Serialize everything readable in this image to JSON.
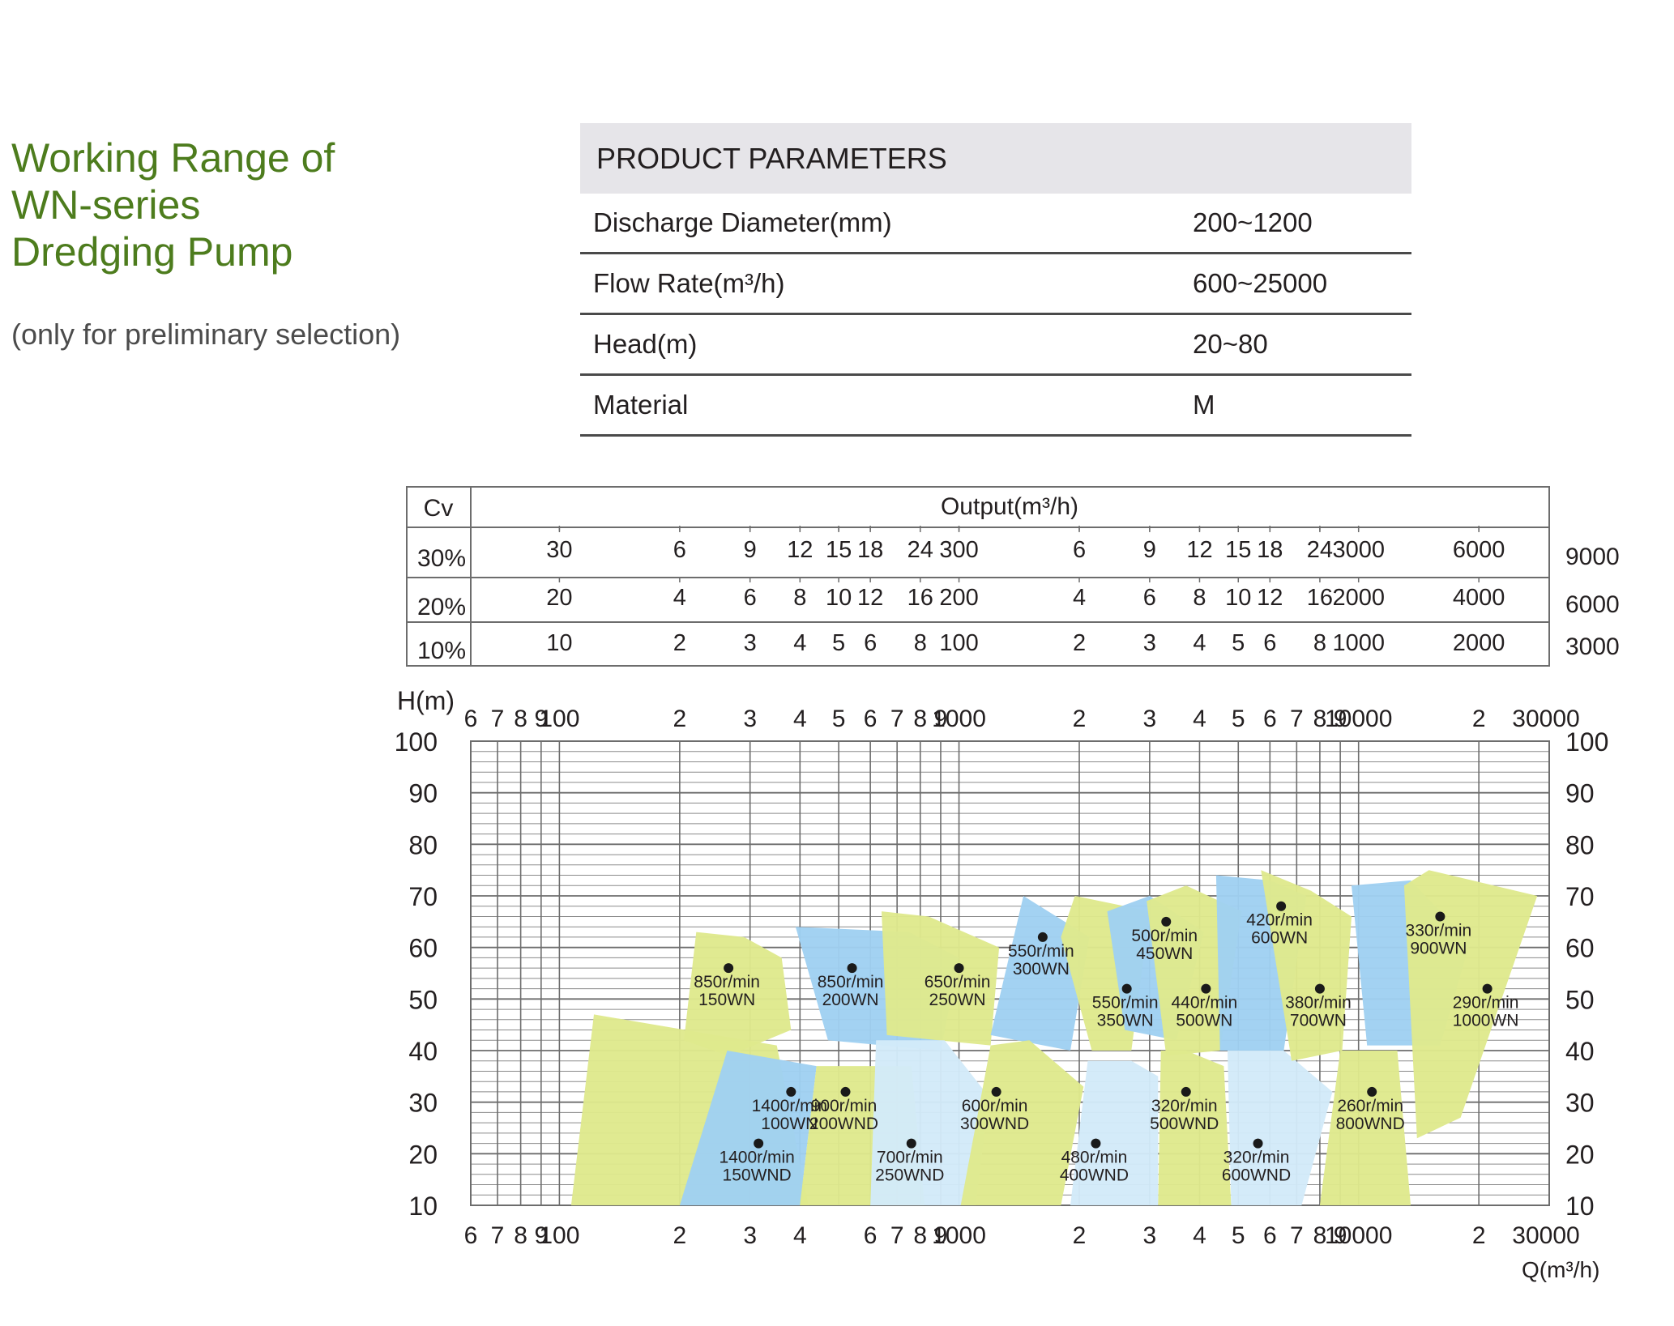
{
  "title_lines": [
    "Working Range of",
    "WN-series",
    "Dredging Pump"
  ],
  "subtitle": "(only for preliminary selection)",
  "params": {
    "header": "PRODUCT PARAMETERS",
    "rows": [
      {
        "label": "Discharge Diameter(mm)",
        "value": "200~1200"
      },
      {
        "label": "Flow Rate(m³/h)",
        "value": "600~25000"
      },
      {
        "label": "Head(m)",
        "value": "20~80"
      },
      {
        "label": "Material",
        "value": "M"
      }
    ]
  },
  "colors": {
    "title_green": "#4d7c1d",
    "yellow": "#dfe98d",
    "pale_yellow": "#eef3bf",
    "blue": "#9fd0f1",
    "pale_blue": "#d2eaf9",
    "grid": "#6d6d6d"
  },
  "chart_data": {
    "type": "area",
    "xscale": "log",
    "xlim": [
      60,
      30000
    ],
    "ylim": [
      10,
      100
    ],
    "xlabel": "Q(m³/h)",
    "ylabel": "H(m)",
    "y_ticks": [
      100,
      90,
      80,
      70,
      60,
      50,
      40,
      30,
      20,
      10
    ],
    "x_ticks": [
      {
        "v": 60,
        "t": "6"
      },
      {
        "v": 70,
        "t": "7"
      },
      {
        "v": 80,
        "t": "8"
      },
      {
        "v": 90,
        "t": "9"
      },
      {
        "v": 100,
        "t": "100"
      },
      {
        "v": 200,
        "t": "2"
      },
      {
        "v": 300,
        "t": "3"
      },
      {
        "v": 400,
        "t": "4"
      },
      {
        "v": 500,
        "t": "5"
      },
      {
        "v": 600,
        "t": "6"
      },
      {
        "v": 700,
        "t": "7"
      },
      {
        "v": 800,
        "t": "8"
      },
      {
        "v": 900,
        "t": "9"
      },
      {
        "v": 1000,
        "t": "1000"
      },
      {
        "v": 2000,
        "t": "2"
      },
      {
        "v": 3000,
        "t": "3"
      },
      {
        "v": 4000,
        "t": "4"
      },
      {
        "v": 5000,
        "t": "5"
      },
      {
        "v": 6000,
        "t": "6"
      },
      {
        "v": 7000,
        "t": "7"
      },
      {
        "v": 8000,
        "t": "8"
      },
      {
        "v": 9000,
        "t": "9"
      },
      {
        "v": 10000,
        "t": "10000"
      },
      {
        "v": 20000,
        "t": "2"
      },
      {
        "v": 30000,
        "t": "30000"
      }
    ],
    "bottom_hidden_ticks": [
      500
    ],
    "cv_table": {
      "header_left": "Cv",
      "header_right": "Output(m³/h)",
      "rows": [
        {
          "cv": "30%",
          "right": "9000",
          "labels": [
            {
              "v": 100,
              "t": "30"
            },
            {
              "v": 200,
              "t": "6"
            },
            {
              "v": 300,
              "t": "9"
            },
            {
              "v": 400,
              "t": "12"
            },
            {
              "v": 500,
              "t": "15"
            },
            {
              "v": 600,
              "t": "18"
            },
            {
              "v": 800,
              "t": "24"
            },
            {
              "v": 1000,
              "t": "300"
            },
            {
              "v": 2000,
              "t": "6"
            },
            {
              "v": 3000,
              "t": "9"
            },
            {
              "v": 4000,
              "t": "12"
            },
            {
              "v": 5000,
              "t": "15"
            },
            {
              "v": 6000,
              "t": "18"
            },
            {
              "v": 8000,
              "t": "24"
            },
            {
              "v": 10000,
              "t": "3000"
            },
            {
              "v": 20000,
              "t": "6000"
            }
          ]
        },
        {
          "cv": "20%",
          "right": "6000",
          "labels": [
            {
              "v": 100,
              "t": "20"
            },
            {
              "v": 200,
              "t": "4"
            },
            {
              "v": 300,
              "t": "6"
            },
            {
              "v": 400,
              "t": "8"
            },
            {
              "v": 500,
              "t": "10"
            },
            {
              "v": 600,
              "t": "12"
            },
            {
              "v": 800,
              "t": "16"
            },
            {
              "v": 1000,
              "t": "200"
            },
            {
              "v": 2000,
              "t": "4"
            },
            {
              "v": 3000,
              "t": "6"
            },
            {
              "v": 4000,
              "t": "8"
            },
            {
              "v": 5000,
              "t": "10"
            },
            {
              "v": 6000,
              "t": "12"
            },
            {
              "v": 8000,
              "t": "16"
            },
            {
              "v": 10000,
              "t": "2000"
            },
            {
              "v": 20000,
              "t": "4000"
            }
          ]
        },
        {
          "cv": "10%",
          "right": "3000",
          "labels": [
            {
              "v": 100,
              "t": "10"
            },
            {
              "v": 200,
              "t": "2"
            },
            {
              "v": 300,
              "t": "3"
            },
            {
              "v": 400,
              "t": "4"
            },
            {
              "v": 500,
              "t": "5"
            },
            {
              "v": 600,
              "t": "6"
            },
            {
              "v": 800,
              "t": "8"
            },
            {
              "v": 1000,
              "t": "100"
            },
            {
              "v": 2000,
              "t": "2"
            },
            {
              "v": 3000,
              "t": "3"
            },
            {
              "v": 4000,
              "t": "4"
            },
            {
              "v": 5000,
              "t": "5"
            },
            {
              "v": 6000,
              "t": "6"
            },
            {
              "v": 8000,
              "t": "8"
            },
            {
              "v": 10000,
              "t": "1000"
            },
            {
              "v": 20000,
              "t": "2000"
            }
          ]
        }
      ]
    },
    "series": [
      {
        "name": "1400r/min 100WN",
        "l1": "1400r/min",
        "l2": "100WN",
        "color": "yellow",
        "point": [
          380,
          32
        ],
        "poly": [
          [
            107,
            10
          ],
          [
            420,
            10
          ],
          [
            350,
            41
          ],
          [
            122,
            47
          ]
        ]
      },
      {
        "name": "850r/min 150WN",
        "l1": "850r/min",
        "l2": "150WN",
        "color": "yellow",
        "point": [
          265,
          56
        ],
        "poly": [
          [
            205,
            42
          ],
          [
            265,
            39
          ],
          [
            380,
            44
          ],
          [
            360,
            58
          ],
          [
            290,
            62
          ],
          [
            220,
            63
          ]
        ]
      },
      {
        "name": "1400r/min 150WND",
        "l1": "1400r/min",
        "l2": "150WND",
        "color": "blue",
        "point": [
          315,
          22
        ],
        "poly": [
          [
            200,
            10
          ],
          [
            400,
            10
          ],
          [
            440,
            37
          ],
          [
            263,
            40
          ]
        ]
      },
      {
        "name": "850r/min 200WN",
        "l1": "850r/min",
        "l2": "200WN",
        "color": "blue",
        "point": [
          540,
          56
        ],
        "poly": [
          [
            470,
            42
          ],
          [
            900,
            40
          ],
          [
            1000,
            58
          ],
          [
            750,
            63
          ],
          [
            390,
            64
          ]
        ]
      },
      {
        "name": "900r/min 200WND",
        "l1": "900r/min",
        "l2": "200WND",
        "color": "yellow",
        "point": [
          520,
          32
        ],
        "poly": [
          [
            400,
            10
          ],
          [
            820,
            10
          ],
          [
            760,
            37
          ],
          [
            440,
            37
          ]
        ]
      },
      {
        "name": "650r/min 250WN",
        "l1": "650r/min",
        "l2": "250WN",
        "color": "yellow",
        "point": [
          1000,
          56
        ],
        "poly": [
          [
            660,
            43
          ],
          [
            1200,
            41
          ],
          [
            1260,
            60
          ],
          [
            840,
            66
          ],
          [
            640,
            67
          ]
        ]
      },
      {
        "name": "700r/min 250WND",
        "l1": "700r/min",
        "l2": "250WND",
        "color": "pale_blue",
        "point": [
          760,
          22
        ],
        "poly": [
          [
            600,
            10
          ],
          [
            1100,
            10
          ],
          [
            1190,
            31
          ],
          [
            920,
            42
          ],
          [
            620,
            42
          ]
        ]
      },
      {
        "name": "550r/min 300WN",
        "l1": "550r/min",
        "l2": "300WN",
        "color": "blue",
        "point": [
          1620,
          62
        ],
        "poly": [
          [
            1200,
            43
          ],
          [
            1900,
            40
          ],
          [
            2120,
            62
          ],
          [
            1450,
            70
          ]
        ]
      },
      {
        "name": "600r/min 300WND",
        "l1": "600r/min",
        "l2": "300WND",
        "color": "yellow",
        "point": [
          1240,
          32
        ],
        "poly": [
          [
            1010,
            10
          ],
          [
            1800,
            10
          ],
          [
            2050,
            33
          ],
          [
            1500,
            42
          ],
          [
            1200,
            41
          ]
        ]
      },
      {
        "name": "550r/min 350WN",
        "l1": "550r/min",
        "l2": "350WN",
        "color": "yellow",
        "point": [
          2630,
          52
        ],
        "poly": [
          [
            2150,
            40
          ],
          [
            2700,
            40
          ],
          [
            3000,
            67
          ],
          [
            1950,
            70
          ],
          [
            1800,
            62
          ]
        ]
      },
      {
        "name": "480r/min 400WND",
        "l1": "480r/min",
        "l2": "400WND",
        "color": "pale_blue",
        "point": [
          2200,
          22
        ],
        "poly": [
          [
            1900,
            10
          ],
          [
            3150,
            10
          ],
          [
            3150,
            35
          ],
          [
            2700,
            38
          ],
          [
            2100,
            38
          ]
        ]
      },
      {
        "name": "500r/min 450WN",
        "l1": "500r/min",
        "l2": "450WN",
        "color": "blue",
        "point": [
          3300,
          65
        ],
        "poly": [
          [
            2600,
            44
          ],
          [
            3500,
            42
          ],
          [
            4100,
            63
          ],
          [
            3000,
            70
          ],
          [
            2350,
            67
          ]
        ]
      },
      {
        "name": "440r/min 500WN",
        "l1": "440r/min",
        "l2": "500WN",
        "color": "yellow",
        "point": [
          4150,
          52
        ],
        "poly": [
          [
            3300,
            39
          ],
          [
            4500,
            40
          ],
          [
            5100,
            67
          ],
          [
            3700,
            72
          ],
          [
            2950,
            69
          ]
        ]
      },
      {
        "name": "320r/min 500WND",
        "l1": "320r/min",
        "l2": "500WND",
        "color": "yellow",
        "point": [
          3700,
          32
        ],
        "poly": [
          [
            3150,
            10
          ],
          [
            4800,
            10
          ],
          [
            4600,
            37
          ],
          [
            3700,
            40
          ],
          [
            3200,
            40
          ]
        ]
      },
      {
        "name": "420r/min 600WN",
        "l1": "420r/min",
        "l2": "600WN",
        "color": "blue",
        "point": [
          6400,
          68
        ],
        "poly": [
          [
            4500,
            40
          ],
          [
            6500,
            40
          ],
          [
            7400,
            70
          ],
          [
            6000,
            73
          ],
          [
            4400,
            74
          ]
        ]
      },
      {
        "name": "320r/min 600WND",
        "l1": "320r/min",
        "l2": "600WND",
        "color": "pale_blue",
        "point": [
          5600,
          22
        ],
        "poly": [
          [
            4800,
            10
          ],
          [
            7200,
            10
          ],
          [
            8600,
            32
          ],
          [
            6500,
            40
          ],
          [
            4700,
            40
          ]
        ]
      },
      {
        "name": "380r/min 700WN",
        "l1": "380r/min",
        "l2": "700WN",
        "color": "yellow",
        "point": [
          8000,
          52
        ],
        "poly": [
          [
            6800,
            38
          ],
          [
            9100,
            40
          ],
          [
            9600,
            66
          ],
          [
            7600,
            71
          ],
          [
            5700,
            75
          ]
        ]
      },
      {
        "name": "260r/min 800WND",
        "l1": "260r/min",
        "l2": "800WND",
        "color": "yellow",
        "point": [
          10800,
          32
        ],
        "poly": [
          [
            8000,
            10
          ],
          [
            13500,
            10
          ],
          [
            12500,
            40
          ],
          [
            9000,
            40
          ]
        ]
      },
      {
        "name": "330r/min 900WN",
        "l1": "330r/min",
        "l2": "900WN",
        "color": "blue",
        "point": [
          16000,
          66
        ],
        "poly": [
          [
            10500,
            41
          ],
          [
            16000,
            41
          ],
          [
            19000,
            61
          ],
          [
            13500,
            73
          ],
          [
            9600,
            72
          ]
        ]
      },
      {
        "name": "290r/min 1000WN",
        "l1": "290r/min",
        "l2": "1000WN",
        "color": "yellow",
        "point": [
          21000,
          52
        ],
        "poly": [
          [
            14000,
            23
          ],
          [
            18000,
            27
          ],
          [
            28000,
            70
          ],
          [
            15000,
            75
          ],
          [
            13000,
            72
          ]
        ]
      }
    ]
  }
}
